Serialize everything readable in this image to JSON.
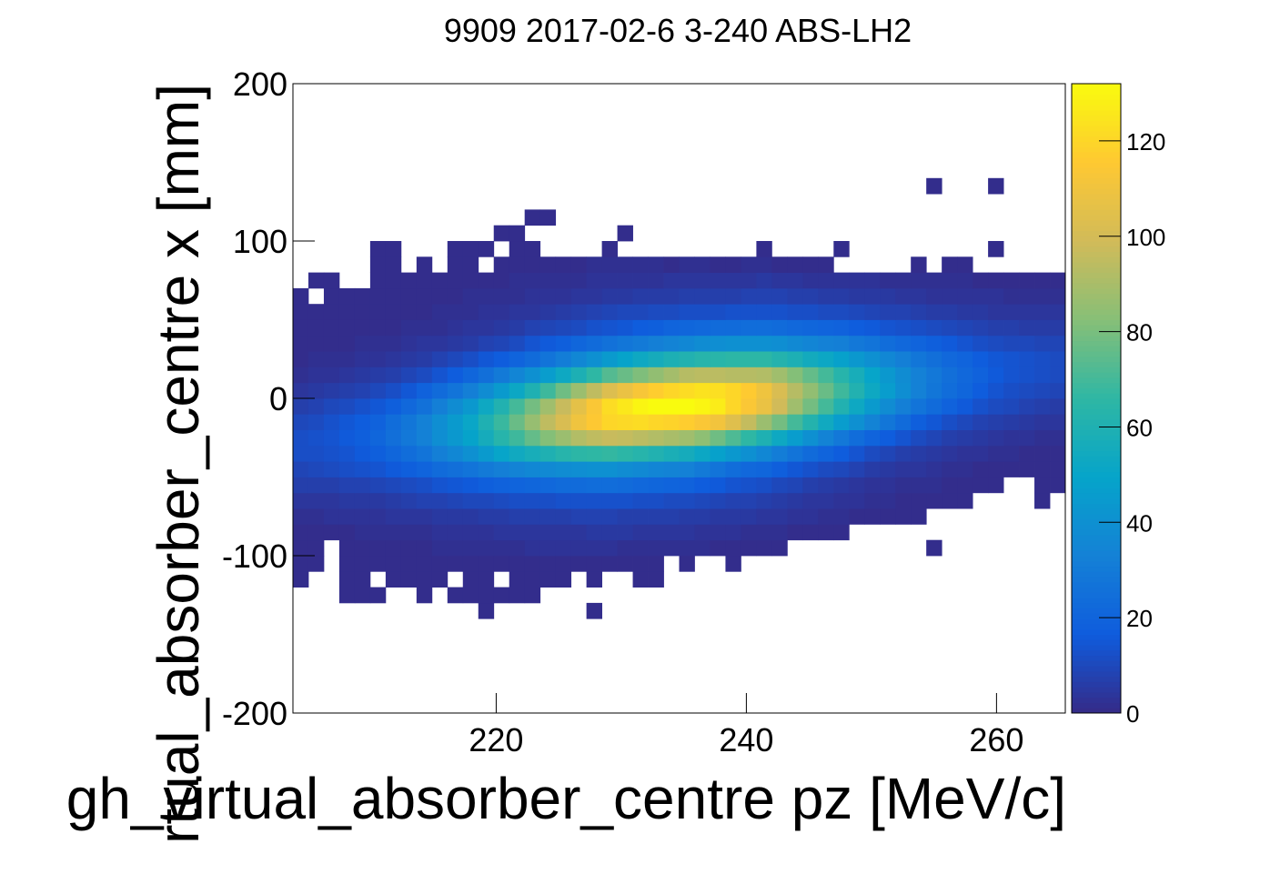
{
  "chart_data": {
    "type": "heatmap",
    "title": "9909 2017-02-6 3-240 ABS-LH2",
    "xlabel": "gh_virtual_absorber_centre pz [MeV/c]",
    "ylabel": "rtual_absorber_centre x [mm]",
    "xlim": [
      203.75,
      265.5
    ],
    "xticks": [
      220,
      240,
      260
    ],
    "ylim": [
      -200,
      200
    ],
    "yticks": [
      -200,
      -100,
      0,
      100,
      200
    ],
    "y_bins": [
      -140,
      -130,
      -120,
      -110,
      -100,
      -90,
      -80,
      -70,
      -60,
      -50,
      -40,
      -30,
      -20,
      -10,
      0,
      10,
      20,
      30,
      40,
      50,
      60,
      70,
      80,
      90,
      100,
      110,
      120,
      130,
      140
    ],
    "zlim": [
      0,
      132
    ],
    "zticks": [
      0,
      20,
      40,
      60,
      80,
      100,
      120
    ],
    "colormap": [
      "#352a87",
      "#0f5cdd",
      "#1481d6",
      "#06a4ca",
      "#2eb7a4",
      "#87bf77",
      "#d1bb59",
      "#fec832",
      "#f9fb0e"
    ],
    "z": [
      [
        0,
        0,
        0,
        0,
        0,
        0,
        0,
        0,
        0,
        0,
        0,
        0,
        1,
        0,
        0,
        0,
        0,
        0,
        0,
        1,
        0,
        0,
        0,
        0,
        0,
        0,
        0,
        0,
        0,
        0,
        0,
        0,
        0,
        0,
        0,
        0,
        0,
        0,
        0,
        0,
        0,
        0,
        0,
        0,
        0,
        0,
        0,
        0,
        0,
        0
      ],
      [
        0,
        0,
        0,
        1,
        1,
        1,
        0,
        0,
        1,
        0,
        1,
        1,
        1,
        1,
        1,
        1,
        0,
        0,
        0,
        0,
        0,
        0,
        0,
        0,
        0,
        0,
        0,
        0,
        0,
        0,
        0,
        0,
        0,
        0,
        0,
        0,
        0,
        0,
        0,
        0,
        0,
        0,
        0,
        0,
        0,
        0,
        0,
        0,
        0,
        0
      ],
      [
        1,
        0,
        0,
        1,
        1,
        0,
        1,
        1,
        1,
        1,
        0,
        1,
        1,
        0,
        1,
        1,
        1,
        1,
        0,
        1,
        0,
        0,
        1,
        1,
        0,
        0,
        0,
        0,
        0,
        0,
        0,
        0,
        0,
        0,
        0,
        0,
        0,
        0,
        0,
        0,
        0,
        0,
        0,
        0,
        0,
        0,
        0,
        0,
        0,
        0
      ],
      [
        1,
        1,
        0,
        1,
        1,
        1,
        1,
        1,
        1,
        1,
        1,
        1,
        1,
        1,
        1,
        1,
        1,
        1,
        1,
        1,
        1,
        1,
        1,
        1,
        0,
        1,
        0,
        0,
        1,
        0,
        0,
        0,
        0,
        0,
        0,
        0,
        0,
        0,
        0,
        0,
        0,
        0,
        0,
        0,
        0,
        0,
        0,
        0,
        0,
        0
      ],
      [
        1,
        1,
        0,
        1,
        1,
        1,
        1,
        1,
        1,
        2,
        2,
        2,
        2,
        2,
        2,
        3,
        3,
        3,
        3,
        3,
        3,
        2,
        2,
        2,
        2,
        2,
        2,
        1,
        1,
        1,
        1,
        1,
        0,
        0,
        0,
        0,
        0,
        0,
        0,
        0,
        0,
        1,
        0,
        0,
        0,
        0,
        0,
        0,
        0,
        0
      ],
      [
        1,
        1,
        1,
        1,
        2,
        2,
        2,
        2,
        2,
        3,
        3,
        3,
        3,
        4,
        4,
        4,
        4,
        4,
        4,
        5,
        5,
        5,
        4,
        4,
        4,
        4,
        3,
        3,
        3,
        2,
        2,
        2,
        1,
        1,
        1,
        1,
        0,
        0,
        0,
        0,
        0,
        0,
        0,
        0,
        0,
        0,
        0,
        0,
        0,
        0
      ],
      [
        2,
        2,
        3,
        3,
        3,
        3,
        4,
        4,
        4,
        5,
        5,
        5,
        6,
        6,
        7,
        7,
        7,
        7,
        8,
        8,
        8,
        7,
        7,
        7,
        7,
        6,
        6,
        5,
        5,
        5,
        4,
        4,
        3,
        3,
        2,
        2,
        1,
        1,
        1,
        1,
        1,
        0,
        0,
        0,
        0,
        0,
        0,
        0,
        0,
        0
      ],
      [
        4,
        4,
        4,
        5,
        5,
        5,
        6,
        7,
        8,
        8,
        9,
        10,
        10,
        11,
        12,
        12,
        12,
        13,
        13,
        13,
        13,
        13,
        12,
        12,
        11,
        11,
        10,
        9,
        8,
        8,
        7,
        6,
        5,
        4,
        4,
        3,
        3,
        2,
        2,
        1,
        1,
        1,
        1,
        1,
        0,
        0,
        0,
        0,
        1,
        0
      ],
      [
        7,
        7,
        7,
        8,
        8,
        9,
        10,
        11,
        12,
        14,
        15,
        16,
        18,
        19,
        20,
        21,
        22,
        23,
        23,
        24,
        24,
        23,
        22,
        21,
        20,
        19,
        17,
        16,
        14,
        13,
        12,
        10,
        9,
        7,
        6,
        5,
        4,
        3,
        3,
        2,
        2,
        2,
        1,
        1,
        1,
        1,
        0,
        0,
        1,
        1
      ],
      [
        9,
        10,
        11,
        12,
        13,
        14,
        16,
        18,
        20,
        23,
        25,
        27,
        30,
        32,
        34,
        36,
        37,
        38,
        39,
        40,
        40,
        38,
        37,
        35,
        34,
        33,
        30,
        27,
        24,
        22,
        21,
        18,
        15,
        13,
        11,
        10,
        8,
        6,
        5,
        4,
        4,
        3,
        2,
        2,
        1,
        1,
        1,
        1,
        1,
        1
      ],
      [
        12,
        12,
        13,
        14,
        16,
        18,
        21,
        24,
        27,
        32,
        36,
        40,
        45,
        50,
        54,
        57,
        60,
        63,
        65,
        66,
        67,
        65,
        63,
        61,
        58,
        56,
        52,
        48,
        44,
        40,
        36,
        31,
        27,
        23,
        20,
        17,
        14,
        11,
        9,
        7,
        6,
        5,
        4,
        3,
        3,
        2,
        2,
        1,
        1,
        1
      ],
      [
        12,
        13,
        14,
        16,
        18,
        21,
        25,
        29,
        33,
        39,
        44,
        49,
        56,
        63,
        69,
        76,
        82,
        87,
        92,
        95,
        97,
        96,
        94,
        92,
        90,
        88,
        84,
        78,
        72,
        66,
        60,
        53,
        46,
        40,
        34,
        29,
        24,
        20,
        17,
        14,
        11,
        9,
        7,
        6,
        5,
        4,
        3,
        3,
        2,
        2
      ],
      [
        10,
        11,
        13,
        15,
        17,
        19,
        24,
        28,
        33,
        39,
        45,
        51,
        60,
        68,
        77,
        86,
        95,
        102,
        110,
        115,
        120,
        121,
        122,
        120,
        119,
        117,
        114,
        111,
        104,
        96,
        87,
        79,
        70,
        62,
        54,
        46,
        40,
        34,
        28,
        23,
        18,
        15,
        12,
        10,
        8,
        7,
        6,
        5,
        4,
        4
      ],
      [
        7,
        8,
        10,
        11,
        13,
        15,
        18,
        22,
        26,
        32,
        38,
        44,
        53,
        61,
        70,
        79,
        88,
        97,
        106,
        114,
        122,
        126,
        130,
        132,
        132,
        132,
        130,
        127,
        120,
        114,
        108,
        99,
        88,
        79,
        70,
        61,
        53,
        45,
        38,
        32,
        27,
        23,
        19,
        16,
        13,
        11,
        10,
        8,
        7,
        6
      ],
      [
        4,
        5,
        6,
        7,
        8,
        10,
        12,
        15,
        19,
        23,
        27,
        32,
        38,
        45,
        52,
        60,
        69,
        78,
        87,
        95,
        103,
        108,
        113,
        117,
        120,
        122,
        124,
        123,
        120,
        116,
        110,
        102,
        93,
        85,
        77,
        69,
        61,
        53,
        46,
        39,
        33,
        28,
        24,
        21,
        17,
        14,
        12,
        11,
        10,
        9
      ],
      [
        2,
        3,
        3,
        4,
        5,
        6,
        7,
        9,
        11,
        14,
        17,
        21,
        25,
        30,
        35,
        40,
        46,
        53,
        59,
        66,
        73,
        77,
        81,
        85,
        89,
        93,
        94,
        94,
        93,
        93,
        92,
        88,
        82,
        76,
        70,
        63,
        57,
        50,
        44,
        38,
        33,
        29,
        25,
        22,
        19,
        16,
        14,
        13,
        12,
        11
      ],
      [
        1,
        2,
        2,
        2,
        3,
        3,
        4,
        5,
        6,
        8,
        10,
        12,
        15,
        17,
        20,
        23,
        27,
        31,
        36,
        40,
        45,
        49,
        53,
        56,
        59,
        61,
        63,
        64,
        65,
        65,
        65,
        62,
        59,
        55,
        52,
        48,
        44,
        40,
        36,
        32,
        28,
        25,
        22,
        20,
        17,
        15,
        14,
        13,
        12,
        11
      ],
      [
        1,
        1,
        1,
        1,
        2,
        2,
        2,
        3,
        4,
        4,
        5,
        6,
        8,
        9,
        11,
        14,
        16,
        18,
        21,
        23,
        26,
        28,
        30,
        32,
        34,
        36,
        38,
        39,
        40,
        40,
        40,
        39,
        37,
        35,
        33,
        32,
        29,
        27,
        24,
        22,
        20,
        18,
        16,
        14,
        12,
        11,
        10,
        10,
        9,
        9
      ],
      [
        1,
        1,
        1,
        1,
        1,
        1,
        1,
        2,
        2,
        2,
        3,
        4,
        4,
        5,
        6,
        8,
        9,
        10,
        11,
        13,
        14,
        15,
        17,
        18,
        20,
        21,
        22,
        23,
        23,
        24,
        24,
        23,
        22,
        21,
        20,
        19,
        17,
        16,
        14,
        13,
        12,
        11,
        10,
        9,
        8,
        7,
        7,
        6,
        6,
        6
      ],
      [
        1,
        1,
        1,
        1,
        1,
        1,
        1,
        1,
        1,
        2,
        2,
        2,
        3,
        3,
        4,
        4,
        5,
        6,
        7,
        8,
        9,
        10,
        10,
        11,
        11,
        12,
        12,
        12,
        13,
        13,
        13,
        13,
        12,
        12,
        11,
        11,
        10,
        9,
        8,
        8,
        7,
        6,
        6,
        5,
        5,
        4,
        4,
        4,
        4,
        4
      ],
      [
        1,
        0,
        1,
        1,
        1,
        1,
        1,
        1,
        1,
        1,
        1,
        2,
        2,
        2,
        2,
        3,
        3,
        3,
        4,
        4,
        5,
        5,
        6,
        6,
        6,
        7,
        7,
        7,
        7,
        8,
        8,
        8,
        7,
        7,
        6,
        6,
        5,
        5,
        5,
        4,
        4,
        3,
        3,
        3,
        3,
        3,
        2,
        2,
        2,
        2
      ],
      [
        0,
        1,
        1,
        0,
        0,
        1,
        1,
        1,
        1,
        1,
        1,
        1,
        1,
        1,
        2,
        2,
        2,
        2,
        2,
        3,
        3,
        3,
        3,
        3,
        4,
        4,
        4,
        4,
        4,
        4,
        5,
        4,
        4,
        3,
        3,
        3,
        3,
        3,
        2,
        2,
        2,
        2,
        2,
        2,
        1,
        1,
        1,
        1,
        1,
        1
      ],
      [
        0,
        0,
        0,
        0,
        0,
        1,
        1,
        0,
        1,
        0,
        1,
        1,
        0,
        1,
        1,
        1,
        1,
        1,
        1,
        2,
        2,
        2,
        2,
        2,
        1,
        2,
        2,
        1,
        1,
        2,
        2,
        1,
        1,
        1,
        1,
        0,
        0,
        0,
        0,
        0,
        1,
        0,
        1,
        1,
        0,
        0,
        0,
        0,
        0,
        0
      ],
      [
        0,
        0,
        0,
        0,
        0,
        1,
        1,
        0,
        0,
        0,
        1,
        1,
        1,
        0,
        1,
        1,
        0,
        0,
        0,
        0,
        1,
        0,
        0,
        0,
        0,
        0,
        0,
        0,
        0,
        0,
        1,
        0,
        0,
        0,
        0,
        1,
        0,
        0,
        0,
        0,
        0,
        0,
        0,
        0,
        0,
        1,
        0,
        0,
        0,
        0
      ],
      [
        0,
        0,
        0,
        0,
        0,
        0,
        0,
        0,
        0,
        0,
        0,
        0,
        0,
        1,
        1,
        0,
        0,
        0,
        0,
        0,
        0,
        1,
        0,
        0,
        0,
        0,
        0,
        0,
        0,
        0,
        0,
        0,
        0,
        0,
        0,
        0,
        0,
        0,
        0,
        0,
        0,
        0,
        0,
        0,
        0,
        0,
        0,
        0,
        0,
        0
      ],
      [
        0,
        0,
        0,
        0,
        0,
        0,
        0,
        0,
        0,
        0,
        0,
        0,
        0,
        0,
        0,
        1,
        1,
        0,
        0,
        0,
        0,
        0,
        0,
        0,
        0,
        0,
        0,
        0,
        0,
        0,
        0,
        0,
        0,
        0,
        0,
        0,
        0,
        0,
        0,
        0,
        0,
        0,
        0,
        0,
        0,
        0,
        0,
        0,
        0,
        0
      ],
      [
        0,
        0,
        0,
        0,
        0,
        0,
        0,
        0,
        0,
        0,
        0,
        0,
        0,
        0,
        0,
        0,
        0,
        0,
        0,
        0,
        0,
        0,
        0,
        0,
        0,
        0,
        0,
        0,
        0,
        0,
        0,
        0,
        0,
        0,
        0,
        0,
        0,
        0,
        0,
        0,
        0,
        0,
        0,
        0,
        0,
        0,
        0,
        0,
        0,
        0
      ],
      [
        0,
        0,
        0,
        0,
        0,
        0,
        0,
        0,
        0,
        0,
        0,
        0,
        0,
        0,
        0,
        0,
        0,
        0,
        0,
        0,
        0,
        0,
        0,
        0,
        0,
        0,
        0,
        0,
        0,
        0,
        0,
        0,
        0,
        0,
        0,
        0,
        0,
        0,
        0,
        0,
        0,
        1,
        0,
        0,
        0,
        1,
        0,
        0,
        0,
        0
      ]
    ]
  }
}
